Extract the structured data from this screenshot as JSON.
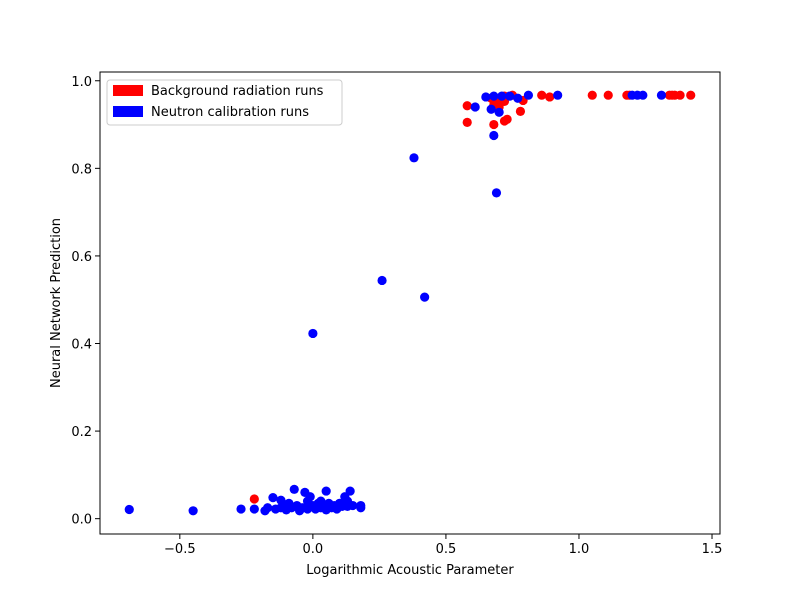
{
  "chart_data": {
    "type": "scatter",
    "title": "",
    "xlabel": "Logarithmic Acoustic Parameter",
    "ylabel": "Neural Network Prediction",
    "xlim": [
      -0.8,
      1.53
    ],
    "ylim": [
      -0.035,
      1.02
    ],
    "xticks": [
      -0.5,
      0.0,
      0.5,
      1.0,
      1.5
    ],
    "xtick_labels": [
      "−0.5",
      "0.0",
      "0.5",
      "1.0",
      "1.5"
    ],
    "yticks": [
      0.0,
      0.2,
      0.4,
      0.6,
      0.8,
      1.0
    ],
    "ytick_labels": [
      "0.0",
      "0.2",
      "0.4",
      "0.6",
      "0.8",
      "1.0"
    ],
    "grid": false,
    "legend_position": "top-left",
    "series": [
      {
        "name": "Background radiation runs",
        "color": "#ff0000",
        "points": [
          [
            -0.22,
            0.045
          ],
          [
            0.58,
            0.943
          ],
          [
            0.58,
            0.905
          ],
          [
            0.67,
            0.96
          ],
          [
            0.68,
            0.945
          ],
          [
            0.68,
            0.9
          ],
          [
            0.69,
            0.955
          ],
          [
            0.7,
            0.94
          ],
          [
            0.71,
            0.952
          ],
          [
            0.72,
            0.965
          ],
          [
            0.72,
            0.953
          ],
          [
            0.72,
            0.908
          ],
          [
            0.73,
            0.912
          ],
          [
            0.75,
            0.967
          ],
          [
            0.78,
            0.93
          ],
          [
            0.79,
            0.955
          ],
          [
            0.86,
            0.967
          ],
          [
            0.89,
            0.963
          ],
          [
            1.05,
            0.967
          ],
          [
            1.11,
            0.967
          ],
          [
            1.18,
            0.967
          ],
          [
            1.19,
            0.967
          ],
          [
            1.34,
            0.967
          ],
          [
            1.35,
            0.967
          ],
          [
            1.36,
            0.967
          ],
          [
            1.38,
            0.967
          ],
          [
            1.42,
            0.967
          ]
        ]
      },
      {
        "name": "Neutron calibration runs",
        "color": "#0000ff",
        "points": [
          [
            -0.69,
            0.021
          ],
          [
            -0.45,
            0.018
          ],
          [
            -0.27,
            0.022
          ],
          [
            -0.22,
            0.022
          ],
          [
            -0.18,
            0.018
          ],
          [
            -0.17,
            0.025
          ],
          [
            -0.15,
            0.048
          ],
          [
            -0.14,
            0.022
          ],
          [
            -0.12,
            0.025
          ],
          [
            -0.12,
            0.042
          ],
          [
            -0.11,
            0.03
          ],
          [
            -0.1,
            0.02
          ],
          [
            -0.09,
            0.035
          ],
          [
            -0.08,
            0.025
          ],
          [
            -0.07,
            0.067
          ],
          [
            -0.06,
            0.03
          ],
          [
            -0.05,
            0.018
          ],
          [
            -0.04,
            0.025
          ],
          [
            -0.03,
            0.06
          ],
          [
            -0.02,
            0.04
          ],
          [
            -0.02,
            0.022
          ],
          [
            -0.01,
            0.05
          ],
          [
            0.0,
            0.03
          ],
          [
            0.01,
            0.022
          ],
          [
            0.02,
            0.035
          ],
          [
            0.03,
            0.025
          ],
          [
            0.03,
            0.04
          ],
          [
            0.04,
            0.03
          ],
          [
            0.05,
            0.02
          ],
          [
            0.05,
            0.063
          ],
          [
            0.06,
            0.035
          ],
          [
            0.07,
            0.025
          ],
          [
            0.08,
            0.03
          ],
          [
            0.09,
            0.022
          ],
          [
            0.1,
            0.035
          ],
          [
            0.11,
            0.028
          ],
          [
            0.12,
            0.05
          ],
          [
            0.13,
            0.04
          ],
          [
            0.13,
            0.028
          ],
          [
            0.14,
            0.063
          ],
          [
            0.15,
            0.03
          ],
          [
            0.18,
            0.03
          ],
          [
            0.18,
            0.025
          ],
          [
            0.0,
            0.423
          ],
          [
            0.26,
            0.544
          ],
          [
            0.38,
            0.824
          ],
          [
            0.42,
            0.506
          ],
          [
            0.61,
            0.94
          ],
          [
            0.65,
            0.963
          ],
          [
            0.67,
            0.935
          ],
          [
            0.68,
            0.875
          ],
          [
            0.68,
            0.965
          ],
          [
            0.69,
            0.744
          ],
          [
            0.7,
            0.928
          ],
          [
            0.71,
            0.965
          ],
          [
            0.74,
            0.965
          ],
          [
            0.77,
            0.96
          ],
          [
            0.81,
            0.967
          ],
          [
            0.92,
            0.967
          ],
          [
            1.2,
            0.967
          ],
          [
            1.22,
            0.967
          ],
          [
            1.24,
            0.967
          ],
          [
            1.31,
            0.967
          ]
        ]
      }
    ]
  }
}
